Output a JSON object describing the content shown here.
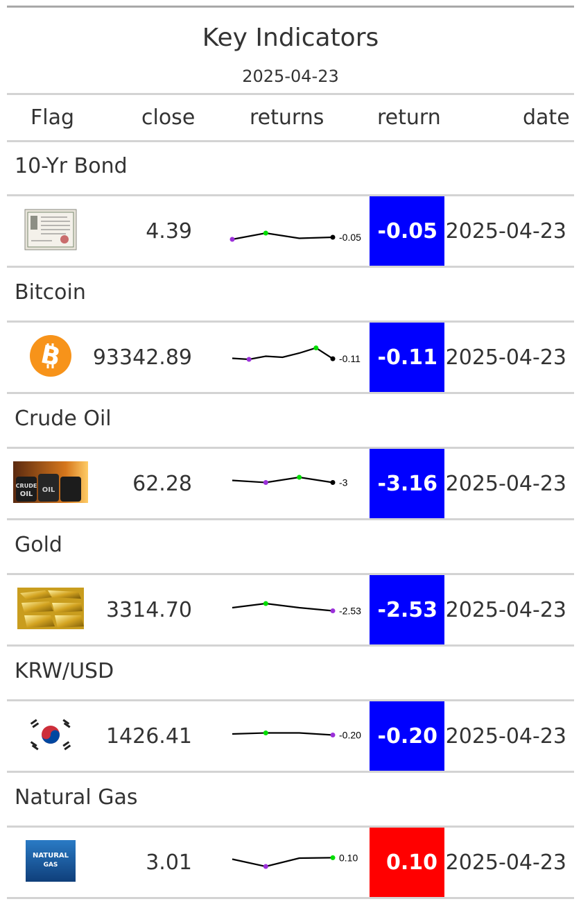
{
  "header": {
    "title": "Key Indicators",
    "subtitle": "2025-04-23"
  },
  "columns": {
    "flag": "Flag",
    "close": "close",
    "returns": "returns",
    "return": "return",
    "date": "date"
  },
  "colors": {
    "negative": "#0000ff",
    "positive": "#ff0000",
    "spark_max": "#00dd00",
    "spark_min": "#9b30d9"
  },
  "groups": [
    {
      "label": "10-Yr Bond",
      "icon": "bond-certificate-icon",
      "close": "4.39",
      "return": "-0.05",
      "return_value": -0.05,
      "date": "2025-04-23",
      "spark_label": "-0.05",
      "spark": [
        0.0,
        0.3,
        0.05,
        0.1
      ]
    },
    {
      "label": "Bitcoin",
      "icon": "bitcoin-icon",
      "close": "93342.89",
      "return": "-0.11",
      "return_value": -0.11,
      "date": "2025-04-23",
      "spark_label": "-0.11",
      "spark": [
        0.35,
        0.3,
        0.45,
        0.4,
        0.6,
        0.85,
        0.33
      ]
    },
    {
      "label": "Crude Oil",
      "icon": "crude-oil-barrels-icon",
      "close": "62.28",
      "return": "-3.16",
      "return_value": -3.16,
      "date": "2025-04-23",
      "spark_label": "-3",
      "spark": [
        0.55,
        0.45,
        0.7,
        0.45
      ]
    },
    {
      "label": "Gold",
      "icon": "gold-bars-icon",
      "close": "3314.70",
      "return": "-2.53",
      "return_value": -2.53,
      "date": "2025-04-23",
      "spark_label": "-2.53",
      "spark": [
        0.5,
        0.7,
        0.5,
        0.35
      ]
    },
    {
      "label": "KRW/USD",
      "icon": "korea-flag-icon",
      "close": "1426.41",
      "return": "-0.20",
      "return_value": -0.2,
      "date": "2025-04-23",
      "spark_label": "-0.20",
      "spark": [
        0.5,
        0.55,
        0.55,
        0.45
      ]
    },
    {
      "label": "Natural Gas",
      "icon": "natural-gas-icon",
      "close": "3.01",
      "return": "0.10",
      "return_value": 0.1,
      "date": "2025-04-23",
      "spark_label": "0.10",
      "spark": [
        0.55,
        0.2,
        0.6,
        0.62
      ]
    }
  ],
  "icons": {
    "natural_gas_text_1": "NATURAL",
    "natural_gas_text_2": "GAS",
    "crude_oil_text_1": "CRUDE",
    "crude_oil_text_2": "OIL"
  }
}
